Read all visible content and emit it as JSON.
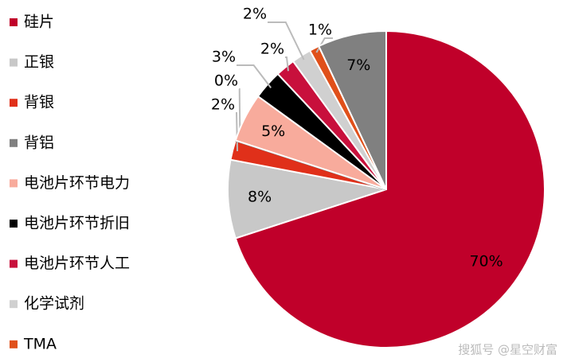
{
  "chart_data": {
    "type": "pie",
    "categories": [
      "硅片",
      "正银",
      "背银",
      "背铝",
      "电池片环节电力",
      "电池片环节折旧",
      "电池片环节人工",
      "化学试剂",
      "TMA",
      null
    ],
    "values": [
      70,
      8,
      2,
      0,
      5,
      3,
      2,
      2,
      1,
      7
    ],
    "value_labels": [
      "70%",
      "8%",
      "2%",
      "0%",
      "5%",
      "3%",
      "2%",
      "2%",
      "1%",
      "7%"
    ],
    "colors": [
      "#c0002a",
      "#c8c8c8",
      "#e0301a",
      "#808080",
      "#f8ab9c",
      "#000000",
      "#c8103c",
      "#d0d0d0",
      "#e0501a",
      "#808080"
    ],
    "watermark": "搜狐号 @星空财富"
  }
}
